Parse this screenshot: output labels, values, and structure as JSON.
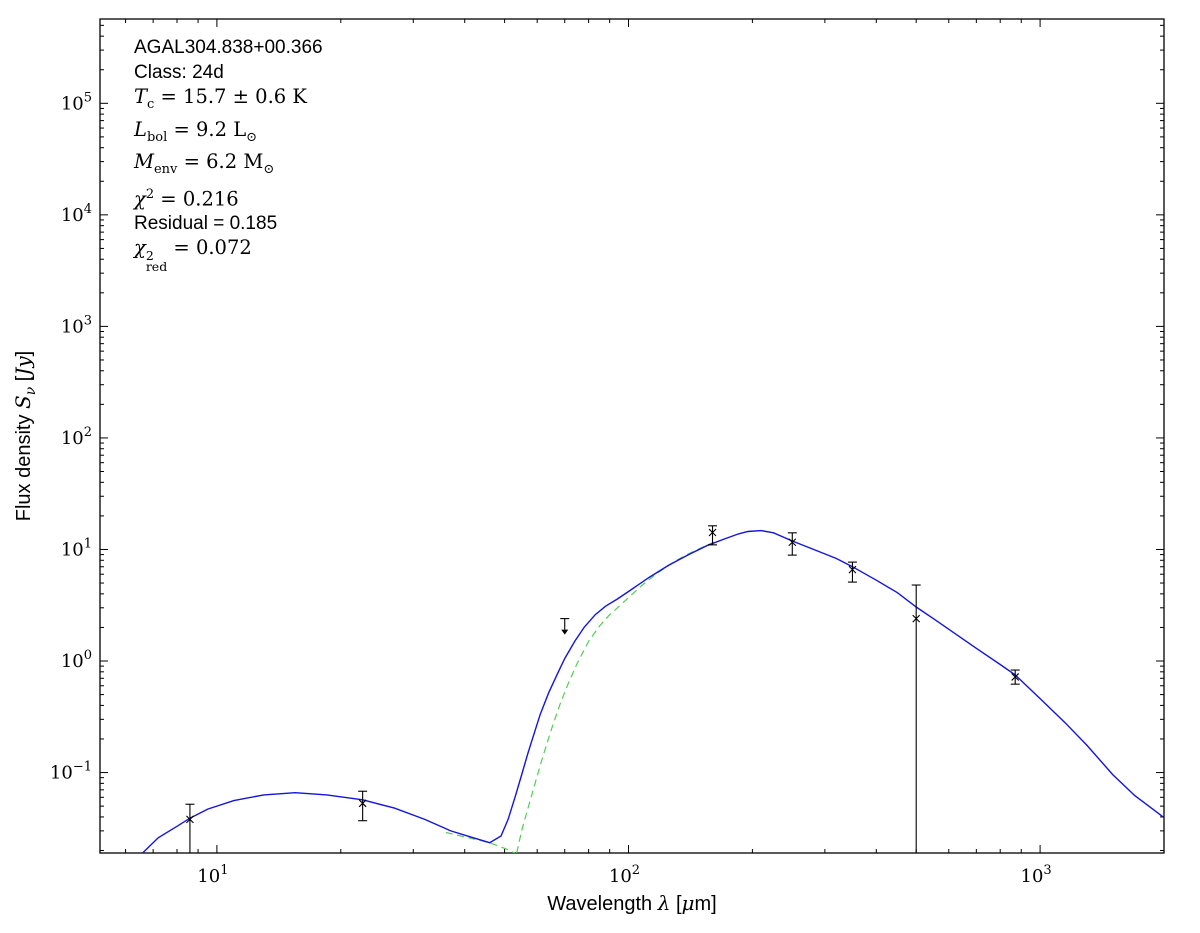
{
  "figure": {
    "background": "#ffffff",
    "frame_color": "#000000"
  },
  "annotation": {
    "source_name": "AGAL304.838+00.366",
    "class_line": "Class: 24d",
    "t_line": {
      "sym": "T",
      "sub": "c",
      "rest": " = 15.7 ± 0.6 K"
    },
    "l_line": {
      "sym": "L",
      "sub": "bol",
      "rest": " = 9.2 ",
      "usym": "L",
      "usub": "⊙"
    },
    "m_line": {
      "sym": "M",
      "sub": "env",
      "rest": " = 6.2 ",
      "usym": "M",
      "usub": "⊙"
    },
    "chi2_line": {
      "sym": "χ",
      "sup": "2",
      "rest": " = 0.216"
    },
    "residual_line": "Residual = 0.185",
    "chi2red_line": {
      "sym": "χ",
      "sup": "2",
      "sub": "red",
      "rest": " = 0.072"
    }
  },
  "chart_data": {
    "type": "line",
    "title": "",
    "xlabel": "Wavelength λ [μm]",
    "ylabel": "Flux density Sν [Jy]",
    "xscale": "log",
    "yscale": "log",
    "xlim": [
      5.2,
      2000
    ],
    "ylim": [
      0.019,
      570000
    ],
    "grid": false,
    "legend": "none",
    "x_tick_exponents": [
      1,
      2,
      3
    ],
    "y_tick_exponents": [
      -1,
      0,
      1,
      2,
      3,
      4,
      5
    ],
    "xlabel_parts": [
      {
        "t": "Wavelength ",
        "f": "sans"
      },
      {
        "t": "λ",
        "f": "it"
      },
      {
        "t": " [",
        "f": "sans"
      },
      {
        "t": "μ",
        "f": "it"
      },
      {
        "t": "m]",
        "f": "sans"
      }
    ],
    "ylabel_parts": [
      {
        "t": "Flux density ",
        "f": "sans"
      },
      {
        "t": "S",
        "f": "it"
      },
      {
        "t": "ν",
        "f": "itsub"
      },
      {
        "t": " [",
        "f": "sans"
      },
      {
        "t": "Jy",
        "f": "it"
      },
      {
        "t": "]",
        "f": "sans"
      }
    ],
    "model_total": {
      "name": "best-fit SED model (total)",
      "color": "#1414dd",
      "points": [
        [
          6.6,
          0.019
        ],
        [
          7.2,
          0.026
        ],
        [
          8.0,
          0.033
        ],
        [
          8.6,
          0.039
        ],
        [
          9.5,
          0.047
        ],
        [
          11,
          0.056
        ],
        [
          13,
          0.063
        ],
        [
          15.5,
          0.066
        ],
        [
          18.5,
          0.063
        ],
        [
          22.6,
          0.057
        ],
        [
          27,
          0.048
        ],
        [
          32,
          0.038
        ],
        [
          37,
          0.03
        ],
        [
          42,
          0.026
        ],
        [
          46,
          0.0235
        ],
        [
          49,
          0.027
        ],
        [
          51,
          0.038
        ],
        [
          53,
          0.06
        ],
        [
          55,
          0.095
        ],
        [
          57,
          0.15
        ],
        [
          59,
          0.225
        ],
        [
          61,
          0.33
        ],
        [
          64,
          0.52
        ],
        [
          67,
          0.75
        ],
        [
          70,
          1.05
        ],
        [
          74,
          1.5
        ],
        [
          78,
          2.0
        ],
        [
          83,
          2.6
        ],
        [
          88,
          3.1
        ],
        [
          94,
          3.6
        ],
        [
          100,
          4.2
        ],
        [
          112,
          5.6
        ],
        [
          125,
          7.2
        ],
        [
          140,
          9.0
        ],
        [
          155,
          10.8
        ],
        [
          170,
          12.3
        ],
        [
          185,
          13.8
        ],
        [
          195,
          14.5
        ],
        [
          210,
          14.75
        ],
        [
          225,
          14.1
        ],
        [
          250,
          11.9
        ],
        [
          280,
          10.1
        ],
        [
          320,
          8.3
        ],
        [
          350,
          7.0
        ],
        [
          400,
          5.3
        ],
        [
          450,
          4.1
        ],
        [
          500,
          3.05
        ],
        [
          560,
          2.3
        ],
        [
          630,
          1.7
        ],
        [
          700,
          1.3
        ],
        [
          800,
          0.93
        ],
        [
          870,
          0.75
        ],
        [
          1000,
          0.46
        ],
        [
          1150,
          0.28
        ],
        [
          1300,
          0.175
        ],
        [
          1500,
          0.096
        ],
        [
          1700,
          0.062
        ],
        [
          1990,
          0.04
        ]
      ]
    },
    "model_components": {
      "name": "model components (hot mid-IR tail and cold greybody)",
      "color": "#55cc55",
      "dashed": true,
      "branches": [
        [
          [
            36,
            0.029
          ],
          [
            40,
            0.0265
          ],
          [
            44,
            0.0245
          ],
          [
            47,
            0.0228
          ],
          [
            49.5,
            0.0212
          ],
          [
            51.5,
            0.02
          ],
          [
            53,
            0.0188
          ]
        ],
        [
          [
            53.5,
            0.019
          ],
          [
            55,
            0.03
          ],
          [
            57,
            0.048
          ],
          [
            59,
            0.075
          ],
          [
            61,
            0.115
          ],
          [
            63,
            0.17
          ],
          [
            65,
            0.245
          ],
          [
            68,
            0.4
          ],
          [
            71,
            0.6
          ],
          [
            75,
            0.95
          ],
          [
            80,
            1.5
          ],
          [
            85,
            2.05
          ],
          [
            90,
            2.6
          ],
          [
            95,
            3.1
          ],
          [
            100,
            3.7
          ],
          [
            108,
            4.8
          ],
          [
            118,
            6.2
          ],
          [
            130,
            7.9
          ],
          [
            142,
            9.4
          ],
          [
            155,
            10.9
          ],
          [
            165,
            12.0
          ]
        ]
      ]
    },
    "data_points": [
      {
        "wavelength_um": 8.6,
        "flux_jy": 0.038,
        "err_hi_jy": 0.052,
        "err_lo_jy": null,
        "lower_clipped": true
      },
      {
        "wavelength_um": 22.6,
        "flux_jy": 0.053,
        "err_hi_jy": 0.068,
        "err_lo_jy": 0.037
      },
      {
        "wavelength_um": 70,
        "flux_jy": 2.4,
        "upper_limit": true
      },
      {
        "wavelength_um": 160,
        "flux_jy": 14.2,
        "err_hi_jy": 16.3,
        "err_lo_jy": 11.0
      },
      {
        "wavelength_um": 250,
        "flux_jy": 11.6,
        "err_hi_jy": 14.1,
        "err_lo_jy": 8.9
      },
      {
        "wavelength_um": 350,
        "flux_jy": 6.6,
        "err_hi_jy": 7.7,
        "err_lo_jy": 5.1
      },
      {
        "wavelength_um": 500,
        "flux_jy": 2.4,
        "err_hi_jy": 4.8,
        "err_lo_jy": null,
        "lower_clipped": true
      },
      {
        "wavelength_um": 870,
        "flux_jy": 0.72,
        "err_hi_jy": 0.83,
        "err_lo_jy": 0.62
      }
    ]
  }
}
